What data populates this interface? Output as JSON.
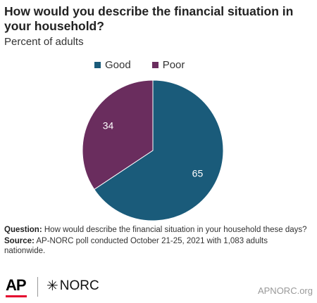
{
  "header": {
    "title": "How would you describe the financial situation in your household?",
    "subtitle": "Percent of adults"
  },
  "chart_data": {
    "type": "pie",
    "categories": [
      "Good",
      "Poor"
    ],
    "values": [
      65,
      34
    ],
    "colors": [
      "#1a5b7a",
      "#6a2d5e"
    ],
    "legend_position": "top"
  },
  "notes": {
    "question_label": "Question:",
    "question_text": "How would describe the financial situation in your household these days?",
    "source_label": "Source:",
    "source_text": "AP-NORC poll conducted October 21-25, 2021 with 1,083 adults nationwide."
  },
  "footer": {
    "ap_logo": "AP",
    "norc_logo": "NORC",
    "credit": "APNORC.org"
  }
}
